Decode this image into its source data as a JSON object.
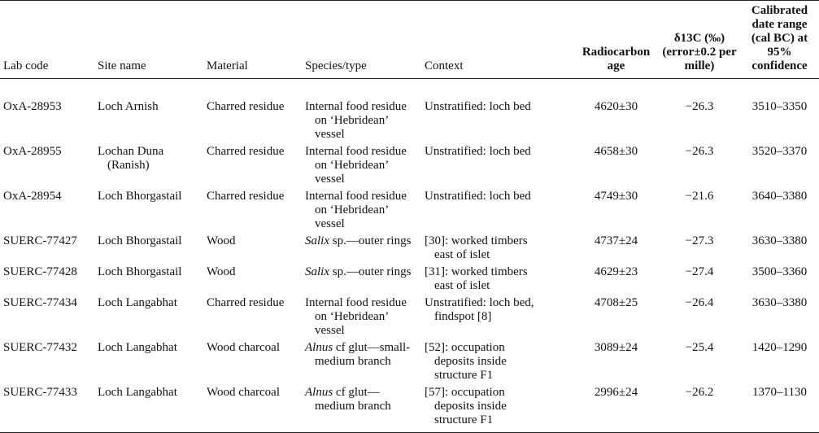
{
  "table": {
    "headers": [
      "Lab code",
      "Site name",
      "Material",
      "Species/type",
      "Context",
      "Radiocarbon age",
      "δ13C (‰) (error±0.2 per mille)",
      "Calibrated date range (cal BC) at 95% confidence"
    ],
    "rows": [
      [
        "OxA-28953",
        "Loch Arnish",
        "Charred residue",
        "Internal food residue on ‘Hebridean’ vessel",
        "Unstratified: loch bed",
        "4620±30",
        "−26.3",
        "3510–3350"
      ],
      [
        "OxA-28955",
        "Lochan Duna (Ranish)",
        "Charred residue",
        "Internal food residue on ‘Hebridean’ vessel",
        "Unstratified: loch bed",
        "4658±30",
        "−26.3",
        "3520–3370"
      ],
      [
        "OxA-28954",
        "Loch Bhorgastail",
        "Charred residue",
        "Internal food residue on ‘Hebridean’ vessel",
        "Unstratified: loch bed",
        "4749±30",
        "−21.6",
        "3640–3380"
      ],
      [
        "SUERC-77427",
        "Loch Bhorgastail",
        "Wood",
        {
          "italic": "Salix",
          "text": " sp.—outer rings"
        },
        "[30]: worked timbers east of islet",
        "4737±24",
        "−27.3",
        "3630–3380"
      ],
      [
        "SUERC-77428",
        "Loch Bhorgastail",
        "Wood",
        {
          "italic": "Salix",
          "text": " sp.—outer rings"
        },
        "[31]: worked timbers east of islet",
        "4629±23",
        "−27.4",
        "3500–3360"
      ],
      [
        "SUERC-77434",
        "Loch Langabhat",
        "Charred residue",
        "Internal food residue on ‘Hebridean’ vessel",
        "Unstratified: loch bed, findspot [8]",
        "4708±25",
        "−26.4",
        "3630–3380"
      ],
      [
        "SUERC-77432",
        "Loch Langabhat",
        "Wood charcoal",
        {
          "italic": "Alnus",
          "text": " cf glut—small-medium branch"
        },
        "[52]: occupation deposits inside structure F1",
        "3089±24",
        "−25.4",
        "1420–1290"
      ],
      [
        "SUERC-77433",
        "Loch Langabhat",
        "Wood charcoal",
        {
          "italic": "Alnus",
          "text": " cf glut—medium branch"
        },
        "[57]: occupation deposits inside structure F1",
        "2996±24",
        "−26.2",
        "1370–1130"
      ]
    ]
  }
}
